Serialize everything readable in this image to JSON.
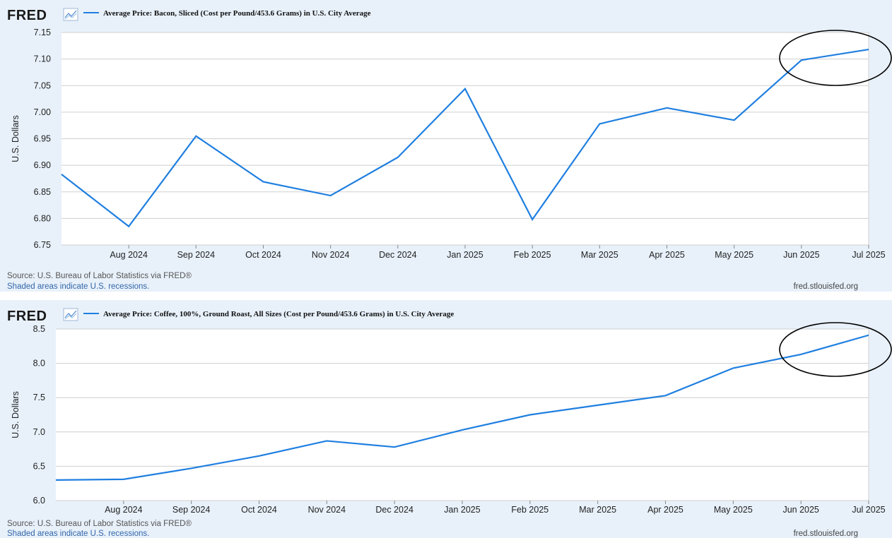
{
  "page": {
    "logo_text": "FRED",
    "source_text": "Source: U.S. Bureau of Labor Statistics via FRED®",
    "shading_note": "Shaded areas indicate U.S. recessions.",
    "site_text": "fred.stlouisfed.org"
  },
  "colors": {
    "series_line": "#1f7fe0",
    "panel_background": "#e8f1fa",
    "plot_background": "#ffffff",
    "grid": "#cfcfcf",
    "highlight_ellipse": "#000000"
  },
  "chart_data": [
    {
      "type": "line",
      "title": "Average Price: Bacon, Sliced (Cost per Pound/453.6 Grams) in U.S. City Average",
      "ylabel": "U.S. Dollars",
      "xlabel": "",
      "ylim": [
        6.75,
        7.15
      ],
      "yticks": [
        "6.75",
        "6.80",
        "6.85",
        "6.90",
        "6.95",
        "7.00",
        "7.05",
        "7.10",
        "7.15"
      ],
      "ytick_values": [
        6.75,
        6.8,
        6.85,
        6.9,
        6.95,
        7.0,
        7.05,
        7.1,
        7.15
      ],
      "x": [
        "2024-07",
        "2024-08",
        "2024-09",
        "2024-10",
        "2024-11",
        "2024-12",
        "2025-01",
        "2025-02",
        "2025-03",
        "2025-04",
        "2025-05",
        "2025-06",
        "2025-07"
      ],
      "xtick_labels": [
        "Aug 2024",
        "Sep 2024",
        "Oct 2024",
        "Nov 2024",
        "Dec 2024",
        "Jan 2025",
        "Feb 2025",
        "Mar 2025",
        "Apr 2025",
        "May 2025",
        "Jun 2025",
        "Jul 2025"
      ],
      "series": [
        {
          "values": [
            6.883,
            6.785,
            6.955,
            6.869,
            6.843,
            6.915,
            7.044,
            6.798,
            6.978,
            7.008,
            6.985,
            7.098,
            7.118
          ]
        }
      ],
      "grid": true,
      "legend": "top-left",
      "highlight": "ellipse around Jun 2025 – Jul 2025"
    },
    {
      "type": "line",
      "title": "Average Price: Coffee, 100%, Ground Roast, All Sizes (Cost per Pound/453.6 Grams) in U.S. City Average",
      "ylabel": "U.S. Dollars",
      "xlabel": "",
      "ylim": [
        6.0,
        8.5
      ],
      "yticks": [
        "6.0",
        "6.5",
        "7.0",
        "7.5",
        "8.0",
        "8.5"
      ],
      "ytick_values": [
        6.0,
        6.5,
        7.0,
        7.5,
        8.0,
        8.5
      ],
      "x": [
        "2024-07",
        "2024-08",
        "2024-09",
        "2024-10",
        "2024-11",
        "2024-12",
        "2025-01",
        "2025-02",
        "2025-03",
        "2025-04",
        "2025-05",
        "2025-06",
        "2025-07"
      ],
      "xtick_labels": [
        "Aug 2024",
        "Sep 2024",
        "Oct 2024",
        "Nov 2024",
        "Dec 2024",
        "Jan 2025",
        "Feb 2025",
        "Mar 2025",
        "Apr 2025",
        "May 2025",
        "Jun 2025",
        "Jul 2025"
      ],
      "series": [
        {
          "values": [
            6.3,
            6.31,
            6.47,
            6.65,
            6.87,
            6.78,
            7.03,
            7.25,
            7.39,
            7.53,
            7.93,
            8.13,
            8.41
          ]
        }
      ],
      "grid": true,
      "legend": "top-left",
      "highlight": "ellipse around Jun 2025 – Jul 2025"
    }
  ]
}
